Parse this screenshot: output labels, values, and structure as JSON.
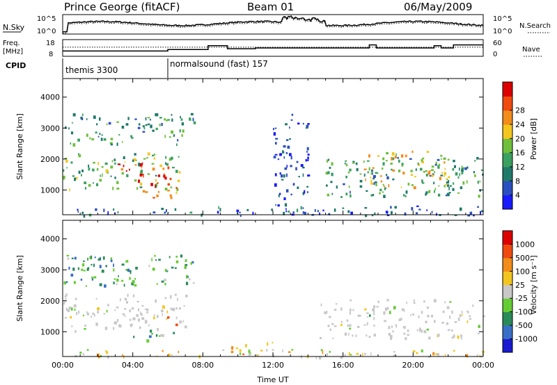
{
  "header": {
    "station": "Prince George (fitACF)",
    "beam": "Beam 01",
    "date": "06/May/2009"
  },
  "summary_panels": {
    "nsky": {
      "label": "N.Sky",
      "ticks": [
        "10^5",
        "10^0"
      ],
      "right_ticks": [
        "10^5",
        "10^0"
      ],
      "right_label": "N.Search"
    },
    "freq": {
      "label_line1": "Freq.",
      "label_line2": "[MHz]",
      "ticks": [
        "18",
        "8"
      ],
      "right_ticks": [
        "60",
        "0"
      ],
      "right_label": "Nave"
    },
    "cpid": {
      "label": "CPID",
      "programs": [
        {
          "name": "themis 3300",
          "start_hour": 0
        },
        {
          "name": "normalsound (fast) 157",
          "start_hour": 6.0
        }
      ]
    }
  },
  "chart_data": [
    {
      "type": "heatmap",
      "panel": "power",
      "ylabel": "Slant Range [km]",
      "xlabel": "",
      "ylim": [
        200,
        4600
      ],
      "xlim": [
        0,
        24
      ],
      "y_ticks": [
        "1000",
        "2000",
        "3000",
        "4000"
      ],
      "colorbar": {
        "label": "Power [dB]",
        "ticks": [
          "4",
          "8",
          "12",
          "16",
          "20",
          "24",
          "28"
        ],
        "colors": [
          "#1a1aff",
          "#2a4fc0",
          "#1f7a6a",
          "#3aa060",
          "#6fbf3c",
          "#f2c61f",
          "#f28c1a",
          "#f04a10",
          "#dd0000"
        ],
        "range": [
          0,
          32
        ]
      },
      "echo_regions": [
        {
          "t": [
            0.0,
            7.0
          ],
          "r": [
            1050,
            2250
          ],
          "level": 0.45
        },
        {
          "t": [
            3.0,
            6.3
          ],
          "r": [
            1300,
            1900
          ],
          "level": 0.85
        },
        {
          "t": [
            4.5,
            6.5
          ],
          "r": [
            700,
            1300
          ],
          "level": 0.8
        },
        {
          "t": [
            0.0,
            7.5
          ],
          "r": [
            2500,
            3500
          ],
          "level": 0.35
        },
        {
          "t": [
            15.0,
            24.0
          ],
          "r": [
            800,
            2100
          ],
          "level": 0.35
        },
        {
          "t": [
            17.0,
            22.0
          ],
          "r": [
            1100,
            2300
          ],
          "level": 0.6
        },
        {
          "t": [
            12.0,
            14.0
          ],
          "r": [
            300,
            3500
          ],
          "level": 0.15
        },
        {
          "t": [
            0.0,
            24.0
          ],
          "r": [
            200,
            500
          ],
          "level": 0.2
        }
      ]
    },
    {
      "type": "heatmap",
      "panel": "velocity",
      "ylabel": "Slant Range [km]",
      "xlabel": "Time UT",
      "ylim": [
        200,
        4600
      ],
      "xlim": [
        0,
        24
      ],
      "y_ticks": [
        "1000",
        "2000",
        "3000",
        "4000"
      ],
      "x_ticks": [
        "00:00",
        "04:00",
        "08:00",
        "12:00",
        "16:00",
        "20:00",
        "00:00"
      ],
      "colorbar": {
        "label": "Velocity [m s⁻¹]",
        "ticks": [
          "1000",
          "500",
          "100",
          "25",
          "-25",
          "-100",
          "-500",
          "-1000"
        ],
        "colors": [
          "#1a1ad0",
          "#3a6fc8",
          "#2a8a5a",
          "#66cc33",
          "#c8c8c8",
          "#f2c61f",
          "#f28c1a",
          "#f04a10",
          "#dd0000"
        ]
      },
      "echo_regions": [
        {
          "t": [
            0.0,
            7.0
          ],
          "r": [
            1050,
            2250
          ],
          "level": 0.5
        },
        {
          "t": [
            4.0,
            6.3
          ],
          "r": [
            700,
            1100
          ],
          "level": 0.35
        },
        {
          "t": [
            5.8,
            6.5
          ],
          "r": [
            1100,
            1500
          ],
          "level": 0.8
        },
        {
          "t": [
            0.0,
            7.5
          ],
          "r": [
            2500,
            3500
          ],
          "level": 0.3
        },
        {
          "t": [
            14.5,
            24.0
          ],
          "r": [
            800,
            2100
          ],
          "level": 0.5
        },
        {
          "t": [
            9.5,
            12.0
          ],
          "r": [
            250,
            700
          ],
          "level": 0.65
        },
        {
          "t": [
            0.0,
            24.0
          ],
          "r": [
            200,
            450
          ],
          "level": 0.55
        }
      ]
    }
  ]
}
